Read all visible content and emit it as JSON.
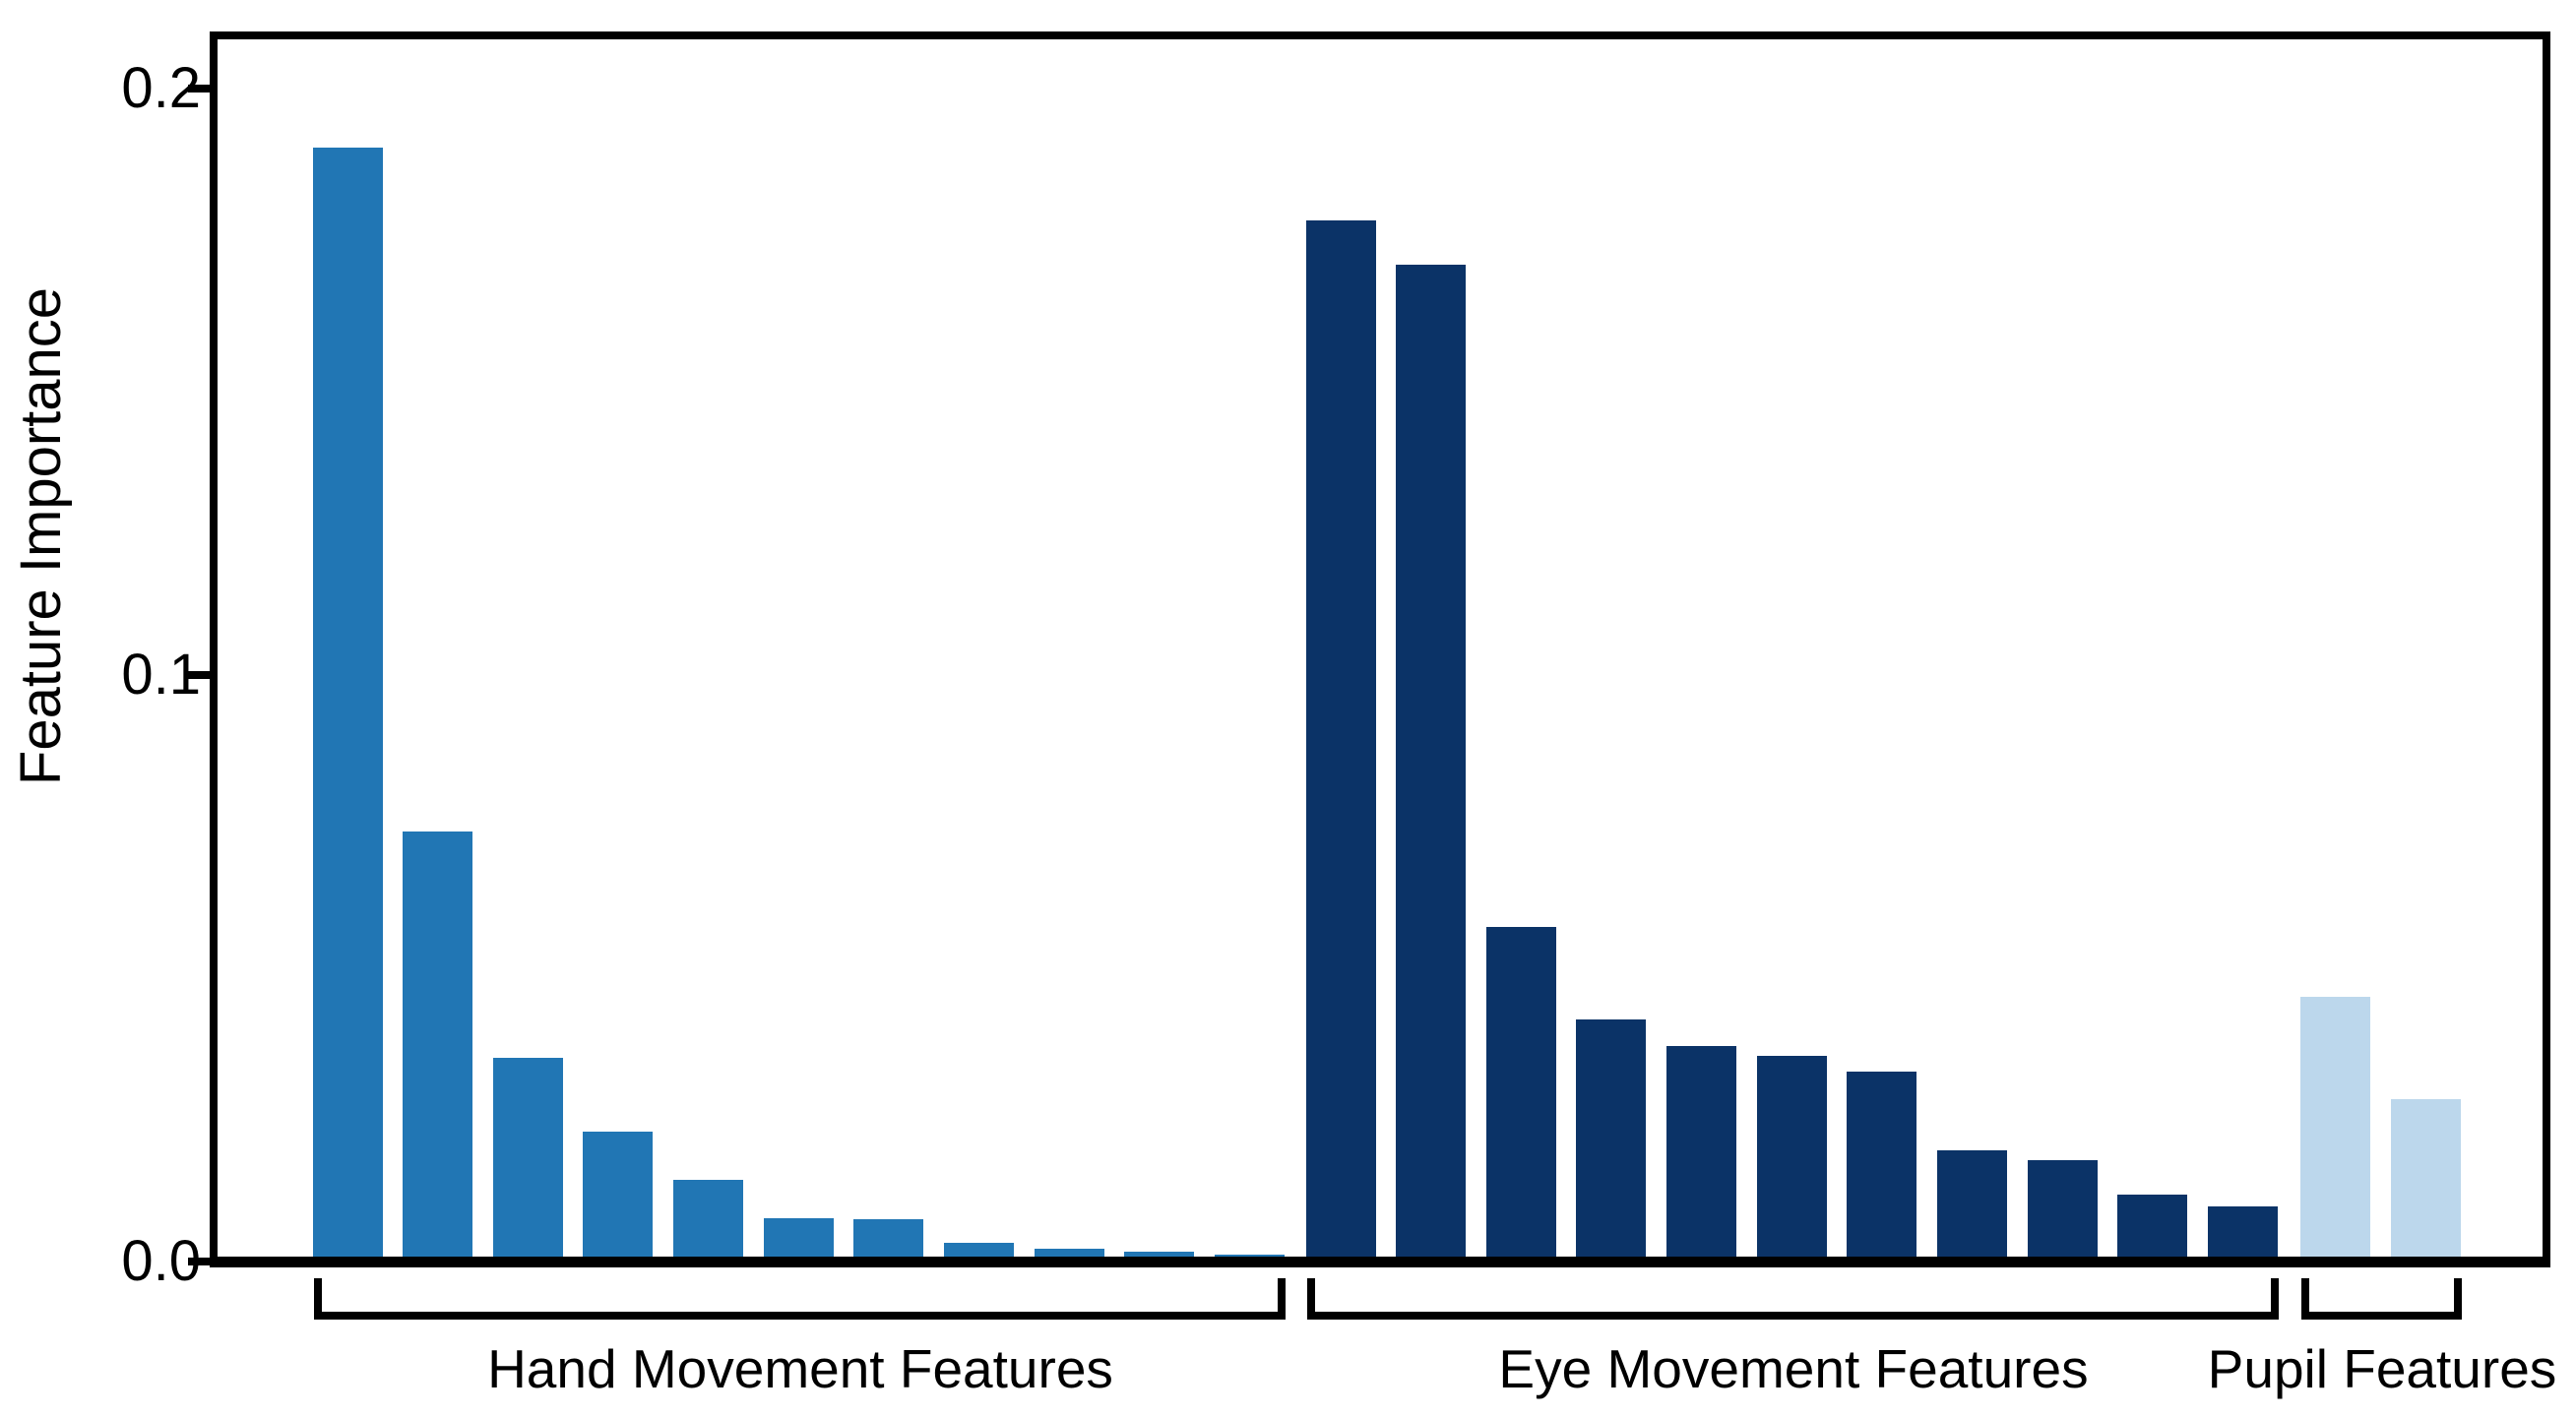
{
  "figure": {
    "background_color": "#ffffff",
    "axis_color": "#000000",
    "text_color": "#000000"
  },
  "chart_data": {
    "type": "bar",
    "title": "",
    "xlabel": "",
    "ylabel": "Feature Importance",
    "ylim": [
      0,
      0.21
    ],
    "yticks": [
      0.0,
      0.1,
      0.2
    ],
    "ytick_labels": [
      "0.0",
      "0.1",
      "0.2"
    ],
    "grid": false,
    "legend_position": "none",
    "x_tick_labels": "none (bars unlabeled individually, grouped by brackets)",
    "groups": [
      {
        "label": "Hand Movement Features",
        "color": "#2176b4",
        "values": [
          0.19,
          0.0734,
          0.0348,
          0.0222,
          0.0139,
          0.0074,
          0.0072,
          0.0032,
          0.0022,
          0.0017,
          0.0012
        ]
      },
      {
        "label": "Eye Movement Features",
        "color": "#0b3367",
        "values": [
          0.1775,
          0.17,
          0.057,
          0.0413,
          0.0368,
          0.035,
          0.0323,
          0.019,
          0.0173,
          0.0114,
          0.0094
        ]
      },
      {
        "label": "Pupil Features",
        "color": "#bcd7ec",
        "values": [
          0.0452,
          0.0277
        ]
      }
    ]
  }
}
